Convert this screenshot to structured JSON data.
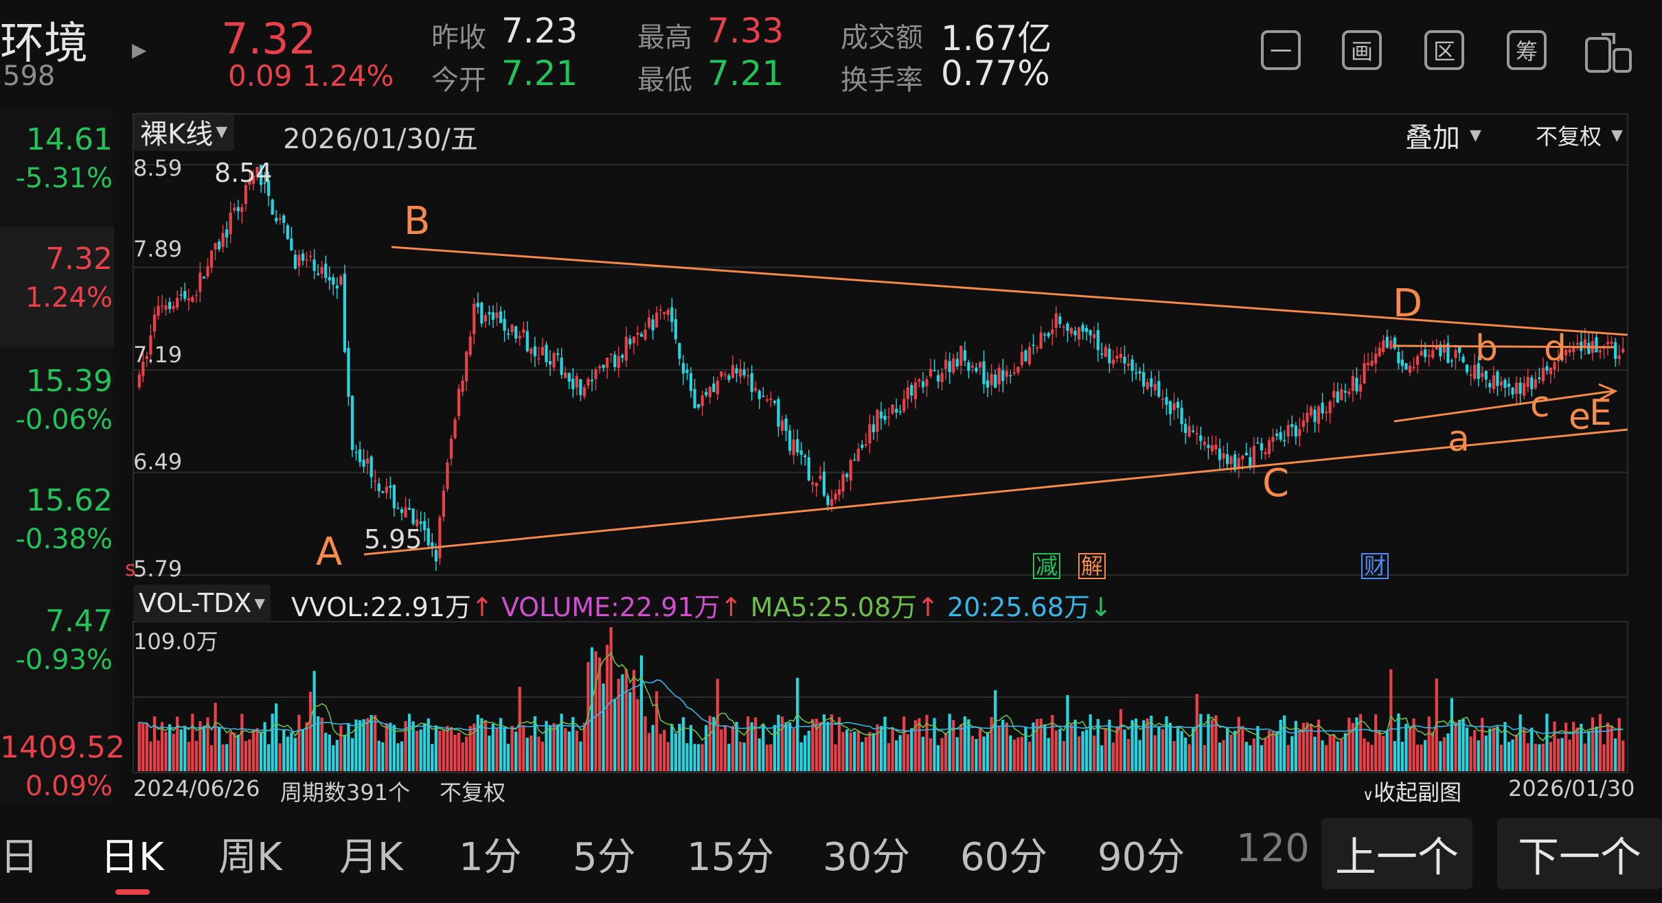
{
  "header": {
    "name": "环境",
    "code": "598",
    "price": "7.32",
    "change": "0.09",
    "change_pct": "1.24%",
    "prev_close_label": "昨收",
    "prev_close": "7.23",
    "open_label": "今开",
    "open": "7.21",
    "high_label": "最高",
    "high": "7.33",
    "low_label": "最低",
    "low": "7.21",
    "turnover_label": "成交额",
    "turnover": "1.67亿",
    "turnover_rate_label": "换手率",
    "turnover_rate": "0.77%"
  },
  "toolbar_icons": [
    {
      "icon": "minus-box-icon",
      "glyph": "一"
    },
    {
      "icon": "picture-box-icon",
      "glyph": "画"
    },
    {
      "icon": "region-box-icon",
      "glyph": "区"
    },
    {
      "icon": "chips-box-icon",
      "glyph": "筹"
    },
    {
      "icon": "switch-device-icon",
      "glyph": ""
    }
  ],
  "left_panel": [
    {
      "value": "14.61",
      "pct": "-5.31%",
      "color": "#22c35a"
    },
    {
      "value": "7.32",
      "pct": "1.24%",
      "color": "#e8414a"
    },
    {
      "value": "15.39",
      "pct": "-0.06%",
      "color": "#22c35a"
    },
    {
      "value": "15.62",
      "pct": "-0.38%",
      "color": "#22c35a"
    },
    {
      "value": "7.47",
      "pct": "-0.93%",
      "color": "#22c35a"
    },
    {
      "value": "1409.52",
      "pct": "0.09%",
      "color": "#e8414a"
    }
  ],
  "chart": {
    "type_selector": "裸K线",
    "date": "2026/01/30/五",
    "overlay": "叠加",
    "adjust": "不复权",
    "y_ticks": [
      "8.59",
      "7.89",
      "7.19",
      "6.49",
      "5.79"
    ],
    "high_label": "8.54",
    "low_label": "5.95",
    "wave_labels": [
      "A",
      "B",
      "C",
      "D",
      "a",
      "b",
      "c",
      "d",
      "e",
      "E"
    ],
    "event_markers": [
      "减",
      "解",
      "财"
    ],
    "s_marker": "s"
  },
  "volume": {
    "indicator": "VOL-TDX",
    "vvol": "VVOL:22.91万",
    "volume_text": "VOLUME:22.91万",
    "ma5": "MA5:25.08万",
    "ma20": "20:25.68万",
    "max_label": "109.0万",
    "up_arrow": "↑",
    "down_arrow": "↓"
  },
  "footer": {
    "start_date": "2024/06/26",
    "period_count": "周期数391个",
    "adjust": "不复权",
    "collapse": "收起副图",
    "end_date": "2026/01/30"
  },
  "tabs": [
    "日",
    "日K",
    "周K",
    "月K",
    "1分",
    "5分",
    "15分",
    "30分",
    "60分",
    "90分",
    "120"
  ],
  "nav": {
    "prev": "上一个",
    "next": "下一个"
  },
  "chart_data": {
    "type": "candlestick",
    "y_range": [
      5.79,
      8.59
    ],
    "period_count": 391,
    "x_start": "2024/06/26",
    "x_end": "2026/01/30",
    "extremes": {
      "high": 8.54,
      "low": 5.95
    },
    "last": {
      "open": 7.21,
      "high": 7.33,
      "low": 7.21,
      "close": 7.32
    }
  },
  "colors": {
    "up": "#e8414a",
    "down": "#27d5e0",
    "annotation": "#f58a4b",
    "grid": "#2c2c2c"
  }
}
